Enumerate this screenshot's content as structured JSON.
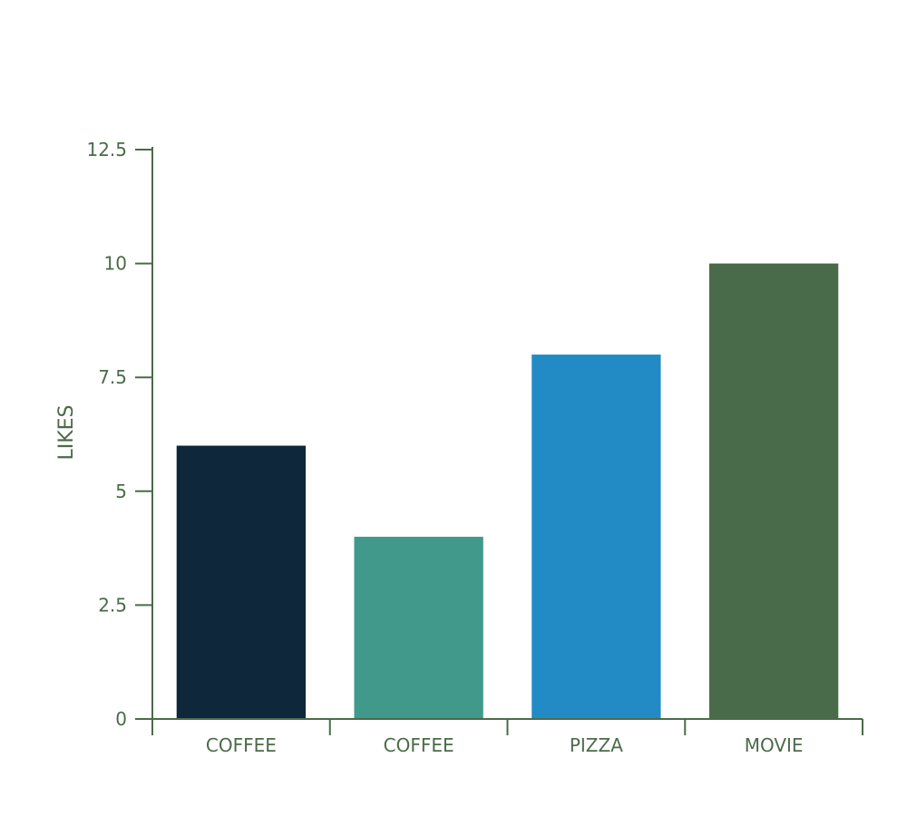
{
  "chart_data": {
    "type": "bar",
    "title": "",
    "xlabel": "",
    "ylabel": "LIKES",
    "categories": [
      "COFFEE",
      "COFFEE",
      "PIZZA",
      "MOVIE"
    ],
    "values": [
      6,
      4,
      8,
      10
    ],
    "colors": [
      "#0e273a",
      "#40998a",
      "#228bc5",
      "#4a6b4a"
    ],
    "ylim": [
      0,
      12.5
    ],
    "yticks": [
      0,
      2.5,
      5,
      7.5,
      10,
      12.5
    ],
    "ytick_labels": [
      "0",
      "2.5",
      "5",
      "7.5",
      "10",
      "12.5"
    ],
    "grid": false,
    "legend": "none"
  }
}
